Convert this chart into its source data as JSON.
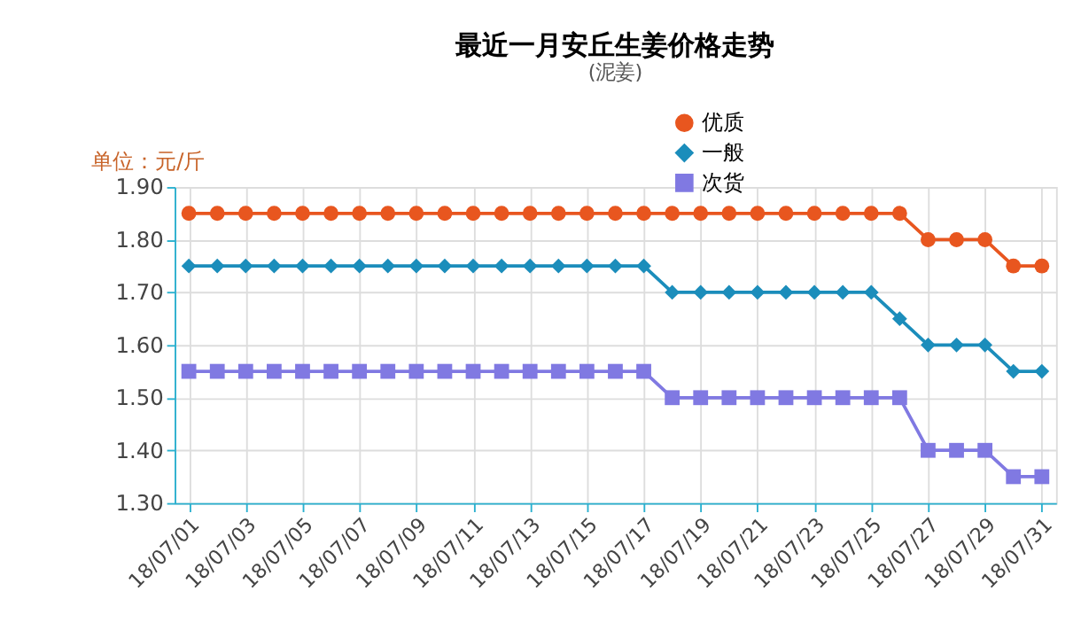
{
  "chart_data": {
    "type": "line",
    "title": "最近一月安丘生姜价格走势",
    "subtitle": "(泥姜)",
    "ylabel": "单位：元/斤",
    "categories": [
      "18/07/01",
      null,
      "18/07/03",
      null,
      "18/07/05",
      null,
      "18/07/07",
      null,
      "18/07/09",
      null,
      "18/07/11",
      null,
      "18/07/13",
      null,
      "18/07/15",
      null,
      "18/07/17",
      null,
      "18/07/19",
      null,
      "18/07/21",
      null,
      "18/07/23",
      null,
      "18/07/25",
      null,
      "18/07/27",
      null,
      "18/07/29",
      null,
      "18/07/31"
    ],
    "series": [
      {
        "name": "优质",
        "color": "#e8561f",
        "marker": "circle",
        "values": [
          1.85,
          1.85,
          1.85,
          1.85,
          1.85,
          1.85,
          1.85,
          1.85,
          1.85,
          1.85,
          1.85,
          1.85,
          1.85,
          1.85,
          1.85,
          1.85,
          1.85,
          1.85,
          1.85,
          1.85,
          1.85,
          1.85,
          1.85,
          1.85,
          1.85,
          1.85,
          1.8,
          1.8,
          1.8,
          1.75,
          1.75
        ]
      },
      {
        "name": "一般",
        "color": "#1b8dbb",
        "marker": "diamond",
        "values": [
          1.75,
          1.75,
          1.75,
          1.75,
          1.75,
          1.75,
          1.75,
          1.75,
          1.75,
          1.75,
          1.75,
          1.75,
          1.75,
          1.75,
          1.75,
          1.75,
          1.75,
          1.7,
          1.7,
          1.7,
          1.7,
          1.7,
          1.7,
          1.7,
          1.7,
          1.65,
          1.6,
          1.6,
          1.6,
          1.55,
          1.55
        ]
      },
      {
        "name": "次货",
        "color": "#8079e2",
        "marker": "square",
        "values": [
          1.55,
          1.55,
          1.55,
          1.55,
          1.55,
          1.55,
          1.55,
          1.55,
          1.55,
          1.55,
          1.55,
          1.55,
          1.55,
          1.55,
          1.55,
          1.55,
          1.55,
          1.5,
          1.5,
          1.5,
          1.5,
          1.5,
          1.5,
          1.5,
          1.5,
          1.5,
          1.4,
          1.4,
          1.4,
          1.35,
          1.35
        ]
      }
    ],
    "ylim": [
      1.3,
      1.9
    ],
    "yticks": [
      {
        "value": 1.3,
        "label": "1.30"
      },
      {
        "value": 1.4,
        "label": "1.40"
      },
      {
        "value": 1.5,
        "label": "1.50"
      },
      {
        "value": 1.6,
        "label": "1.60"
      },
      {
        "value": 1.7,
        "label": "1.70"
      },
      {
        "value": 1.8,
        "label": "1.80"
      },
      {
        "value": 1.9,
        "label": "1.90"
      }
    ],
    "grid": true,
    "legend": "top right",
    "line_style": "solid"
  }
}
